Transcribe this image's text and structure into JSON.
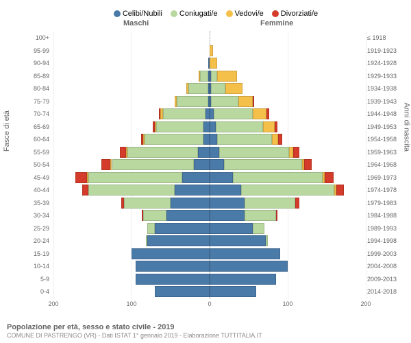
{
  "legend": [
    {
      "label": "Celibi/Nubili",
      "color": "#4a7aa8"
    },
    {
      "label": "Coniugati/e",
      "color": "#b8d8a0"
    },
    {
      "label": "Vedovi/e",
      "color": "#f5c04a"
    },
    {
      "label": "Divorziati/e",
      "color": "#d43b2a"
    }
  ],
  "headers": {
    "male": "Maschi",
    "female": "Femmine"
  },
  "ylabels": {
    "left": "Fasce di età",
    "right": "Anni di nascita"
  },
  "xticks": [
    -200,
    -100,
    0,
    100,
    200
  ],
  "xtick_labels": [
    "200",
    "100",
    "0",
    "100",
    "200"
  ],
  "scale_max": 200,
  "footer": {
    "title": "Popolazione per età, sesso e stato civile - 2019",
    "subtitle": "COMUNE DI PASTRENGO (VR) - Dati ISTAT 1° gennaio 2019 - Elaborazione TUTTITALIA.IT"
  },
  "rows": [
    {
      "age": "100+",
      "year": "≤ 1918",
      "m": [
        0,
        0,
        0,
        0
      ],
      "f": [
        0,
        0,
        0,
        0
      ]
    },
    {
      "age": "95-99",
      "year": "1919-1923",
      "m": [
        0,
        0,
        0,
        0
      ],
      "f": [
        0,
        0,
        4,
        0
      ]
    },
    {
      "age": "90-94",
      "year": "1924-1928",
      "m": [
        2,
        0,
        0,
        0
      ],
      "f": [
        0,
        0,
        10,
        0
      ]
    },
    {
      "age": "85-89",
      "year": "1929-1933",
      "m": [
        2,
        10,
        2,
        0
      ],
      "f": [
        2,
        8,
        25,
        0
      ]
    },
    {
      "age": "80-84",
      "year": "1934-1938",
      "m": [
        2,
        25,
        3,
        0
      ],
      "f": [
        2,
        18,
        22,
        0
      ]
    },
    {
      "age": "75-79",
      "year": "1939-1943",
      "m": [
        2,
        40,
        3,
        0
      ],
      "f": [
        2,
        35,
        18,
        2
      ]
    },
    {
      "age": "70-74",
      "year": "1944-1948",
      "m": [
        5,
        55,
        3,
        2
      ],
      "f": [
        5,
        50,
        18,
        3
      ]
    },
    {
      "age": "65-69",
      "year": "1949-1953",
      "m": [
        8,
        60,
        2,
        3
      ],
      "f": [
        8,
        60,
        15,
        4
      ]
    },
    {
      "age": "60-64",
      "year": "1954-1958",
      "m": [
        8,
        75,
        2,
        3
      ],
      "f": [
        10,
        70,
        8,
        5
      ]
    },
    {
      "age": "55-59",
      "year": "1959-1963",
      "m": [
        15,
        90,
        2,
        8
      ],
      "f": [
        12,
        90,
        5,
        8
      ]
    },
    {
      "age": "50-54",
      "year": "1964-1968",
      "m": [
        20,
        105,
        2,
        12
      ],
      "f": [
        18,
        100,
        3,
        10
      ]
    },
    {
      "age": "45-49",
      "year": "1969-1973",
      "m": [
        35,
        120,
        2,
        15
      ],
      "f": [
        30,
        115,
        2,
        12
      ]
    },
    {
      "age": "40-44",
      "year": "1974-1978",
      "m": [
        45,
        110,
        0,
        8
      ],
      "f": [
        40,
        120,
        2,
        10
      ]
    },
    {
      "age": "35-39",
      "year": "1979-1983",
      "m": [
        50,
        60,
        0,
        3
      ],
      "f": [
        45,
        65,
        0,
        5
      ]
    },
    {
      "age": "30-34",
      "year": "1984-1988",
      "m": [
        55,
        30,
        0,
        2
      ],
      "f": [
        45,
        40,
        0,
        2
      ]
    },
    {
      "age": "25-29",
      "year": "1989-1993",
      "m": [
        70,
        10,
        0,
        0
      ],
      "f": [
        55,
        15,
        0,
        0
      ]
    },
    {
      "age": "20-24",
      "year": "1994-1998",
      "m": [
        80,
        2,
        0,
        0
      ],
      "f": [
        72,
        3,
        0,
        0
      ]
    },
    {
      "age": "15-19",
      "year": "1999-2003",
      "m": [
        100,
        0,
        0,
        0
      ],
      "f": [
        90,
        0,
        0,
        0
      ]
    },
    {
      "age": "10-14",
      "year": "2004-2008",
      "m": [
        95,
        0,
        0,
        0
      ],
      "f": [
        100,
        0,
        0,
        0
      ]
    },
    {
      "age": "5-9",
      "year": "2009-2013",
      "m": [
        95,
        0,
        0,
        0
      ],
      "f": [
        85,
        0,
        0,
        0
      ]
    },
    {
      "age": "0-4",
      "year": "2014-2018",
      "m": [
        70,
        0,
        0,
        0
      ],
      "f": [
        60,
        0,
        0,
        0
      ]
    }
  ]
}
